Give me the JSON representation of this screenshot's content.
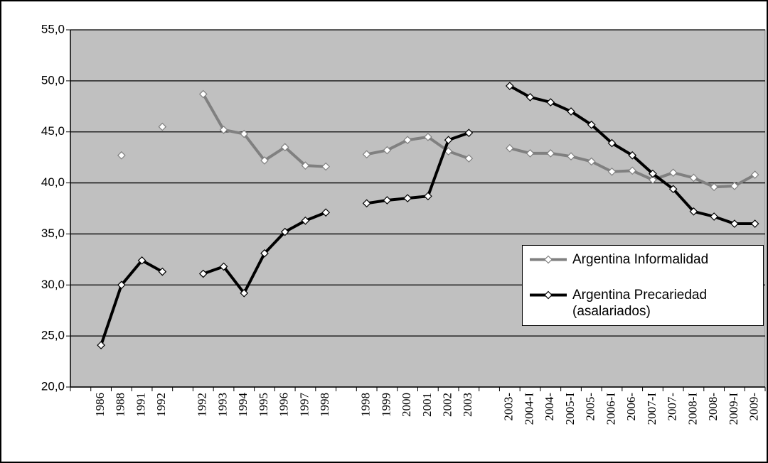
{
  "chart_data": {
    "type": "line",
    "categories": [
      null,
      "1986",
      "1988",
      "1991",
      "1992",
      null,
      "1992",
      "1993",
      "1994",
      "1995",
      "1996",
      "1997",
      "1998",
      null,
      "1998",
      "1999",
      "2000",
      "2001",
      "2002",
      "2003",
      null,
      "2003-",
      "2004-I",
      "2004-",
      "2005-I",
      "2005-",
      "2006-I",
      "2006-",
      "2007-I",
      "2007-",
      "2008-I",
      "2008-",
      "2009-I",
      "2009-"
    ],
    "series": [
      {
        "name": "Argentina Informalidad",
        "color": "#808080",
        "values": [
          null,
          null,
          42.7,
          null,
          45.5,
          null,
          48.7,
          45.2,
          44.8,
          42.2,
          43.5,
          41.7,
          41.6,
          null,
          42.8,
          43.2,
          44.2,
          44.5,
          43.1,
          42.4,
          null,
          43.4,
          42.9,
          42.9,
          42.6,
          42.1,
          41.1,
          41.2,
          40.3,
          41.0,
          40.5,
          39.6,
          39.7,
          40.8
        ]
      },
      {
        "name": "Argentina Precariedad (asalariados)",
        "color": "#000000",
        "values": [
          null,
          24.1,
          30.0,
          32.4,
          31.3,
          null,
          31.1,
          31.8,
          29.2,
          33.1,
          35.2,
          36.3,
          37.1,
          null,
          38.0,
          38.3,
          38.5,
          38.7,
          44.2,
          44.9,
          null,
          49.5,
          48.4,
          47.9,
          47.0,
          45.7,
          43.9,
          42.7,
          40.9,
          39.4,
          37.2,
          36.7,
          36.0,
          36.0
        ]
      }
    ],
    "ylim": [
      20,
      55
    ],
    "yticks": [
      {
        "value": 20,
        "label": "20,0"
      },
      {
        "value": 25,
        "label": "25,0"
      },
      {
        "value": 30,
        "label": "30,0"
      },
      {
        "value": 35,
        "label": "35,0"
      },
      {
        "value": 40,
        "label": "40,0"
      },
      {
        "value": 45,
        "label": "45,0"
      },
      {
        "value": 50,
        "label": "50,0"
      },
      {
        "value": 55,
        "label": "55,0"
      }
    ],
    "grid": true,
    "legend": "right"
  }
}
